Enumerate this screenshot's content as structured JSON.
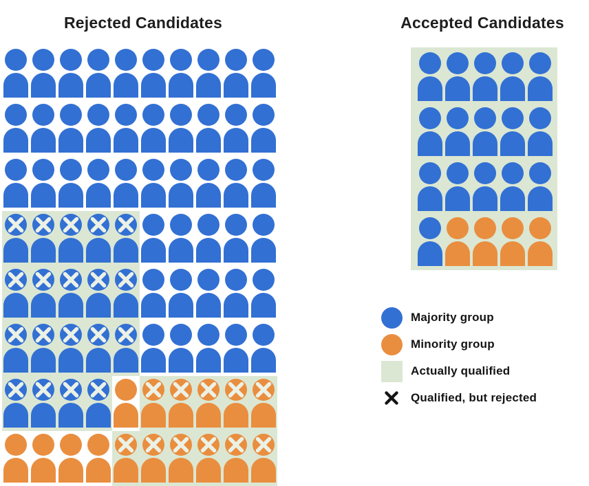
{
  "colors": {
    "majority": "#3370d4",
    "minority": "#e98d3f",
    "qualified_bg": "#dbe7d3",
    "person_x_mark": "#ecf1e6",
    "legend_x_mark": "#141414",
    "title_text": "#1e1e1e",
    "label_text": "#141414",
    "background": "#ffffff"
  },
  "chart_data": {
    "type": "pictogram",
    "panels": [
      {
        "title": "Rejected Candidates",
        "grid_columns": 10,
        "grid": [
          "MMMMMMMMMM",
          "MMMMMMMMMM",
          "MMMMMMMMMM",
          "XXXXXMMMMM",
          "XXXXXMMMMM",
          "XXXXXMMMMM",
          "XXXXmZZZZZ",
          "mmmmZZZZZZ"
        ],
        "counts": {
          "total": 80,
          "majority_not_qualified": 45,
          "majority_qualified_rejected": 19,
          "minority_not_qualified": 5,
          "minority_qualified_rejected": 11
        }
      },
      {
        "title": "Accepted Candidates",
        "grid_columns": 5,
        "grid": [
          "QQQQQ",
          "QQQQQ",
          "QQQQQ",
          "QRRRR"
        ],
        "counts": {
          "total": 20,
          "majority_accepted": 16,
          "minority_accepted": 4
        }
      }
    ],
    "cell_key": {
      "M": {
        "group": "majority",
        "qualified": false,
        "rejected_x": false
      },
      "X": {
        "group": "majority",
        "qualified": true,
        "rejected_x": true
      },
      "m": {
        "group": "minority",
        "qualified": false,
        "rejected_x": false
      },
      "Z": {
        "group": "minority",
        "qualified": true,
        "rejected_x": true
      },
      "Q": {
        "group": "majority",
        "qualified": true,
        "rejected_x": false
      },
      "R": {
        "group": "minority",
        "qualified": true,
        "rejected_x": false
      }
    },
    "legend": [
      {
        "id": "majority-group",
        "swatch": "circle",
        "color_key": "majority",
        "label": "Majority group"
      },
      {
        "id": "minority-group",
        "swatch": "circle",
        "color_key": "minority",
        "label": "Minority group"
      },
      {
        "id": "actually-qualified",
        "swatch": "square",
        "color_key": "qualified_bg",
        "label": "Actually qualified"
      },
      {
        "id": "qualified-but-rejected",
        "swatch": "x-mark",
        "color_key": "legend_x_mark",
        "label": "Qualified, but rejected"
      }
    ],
    "legend_position": "right-bottom",
    "grid_lines": false
  }
}
